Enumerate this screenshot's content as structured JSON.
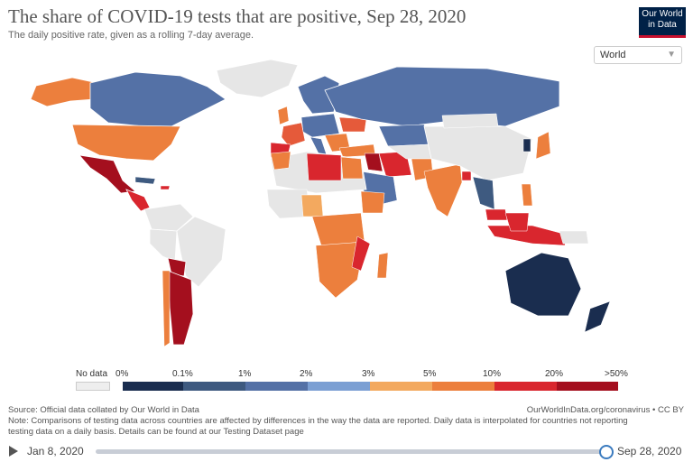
{
  "title": "The share of COVID-19 tests that are positive, Sep 28, 2020",
  "subtitle": "The daily positive rate, given as a rolling 7-day average.",
  "logo": {
    "line1": "Our World",
    "line2": "in Data"
  },
  "region_selector": {
    "value": "World"
  },
  "legend": {
    "no_data_label": "No data",
    "no_data_color": "#eeeeee",
    "tick_labels": [
      "0%",
      "0.1%",
      "1%",
      "2%",
      "3%",
      "5%",
      "10%",
      "20%",
      ">50%"
    ],
    "colors": [
      "#1a2d4f",
      "#3e5a80",
      "#5471a6",
      "#7b9fd3",
      "#f3a95f",
      "#ec7f3d",
      "#e55a3a",
      "#d9262e",
      "#a40f1e"
    ]
  },
  "colors": {
    "ocean": "#ffffff",
    "land_no_data": "#e6e6e6"
  },
  "footer": {
    "source": "Source: Official data collated by Our World in Data",
    "url": "OurWorldInData.org/coronavirus • CC BY",
    "note_line1": "Note: Comparisons of testing data across countries are affected by differences in the way the data are reported. Daily data is interpolated for countries not reporting",
    "note_line2": "testing data on a daily basis. Details can be found at our Testing Dataset page"
  },
  "timeline": {
    "start": "Jan 8, 2020",
    "end": "Sep 28, 2020",
    "position": 1.0
  }
}
